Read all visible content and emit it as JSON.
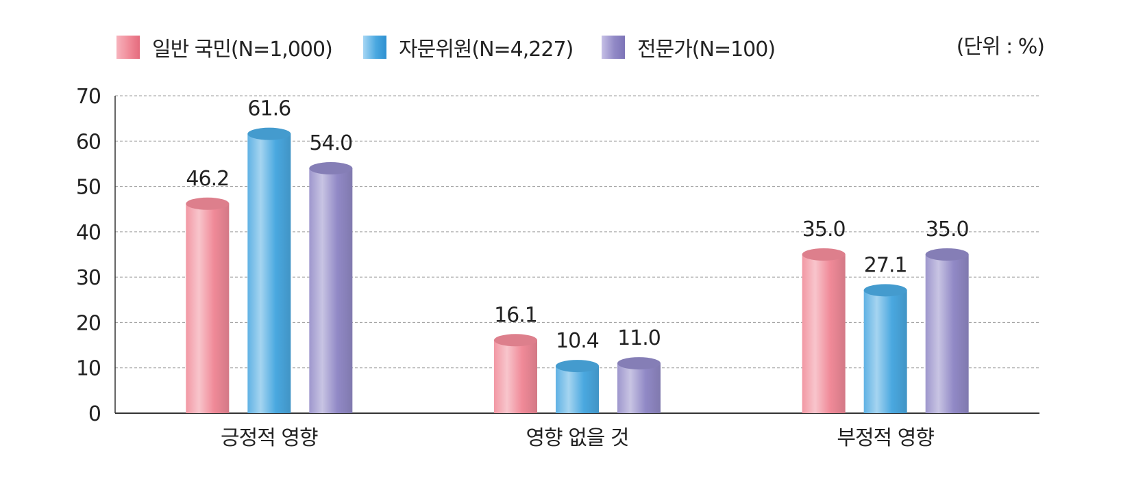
{
  "chart_data": {
    "type": "bar",
    "unit_label": "(단위 : %)",
    "categories": [
      "긍정적 영향",
      "영향 없을 것",
      "부정적 영향"
    ],
    "series": [
      {
        "name": "일반 국민(N=1,000)",
        "values": [
          46.2,
          16.1,
          35.0
        ],
        "value_labels": [
          "46.2",
          "16.1",
          "35.0"
        ],
        "color": "#f08a98"
      },
      {
        "name": "자문위원(N=4,227)",
        "values": [
          61.6,
          10.4,
          27.1
        ],
        "value_labels": [
          "61.6",
          "10.4",
          "27.1"
        ],
        "color": "#4aa8e0"
      },
      {
        "name": "전문가(N=100)",
        "values": [
          54.0,
          11.0,
          35.0
        ],
        "value_labels": [
          "54.0",
          "11.0",
          "35.0"
        ],
        "color": "#9189c6"
      }
    ],
    "ylim": [
      0,
      70
    ],
    "yticks": [
      0,
      10,
      20,
      30,
      40,
      50,
      60,
      70
    ],
    "grid": true,
    "legend_position": "top-left"
  }
}
